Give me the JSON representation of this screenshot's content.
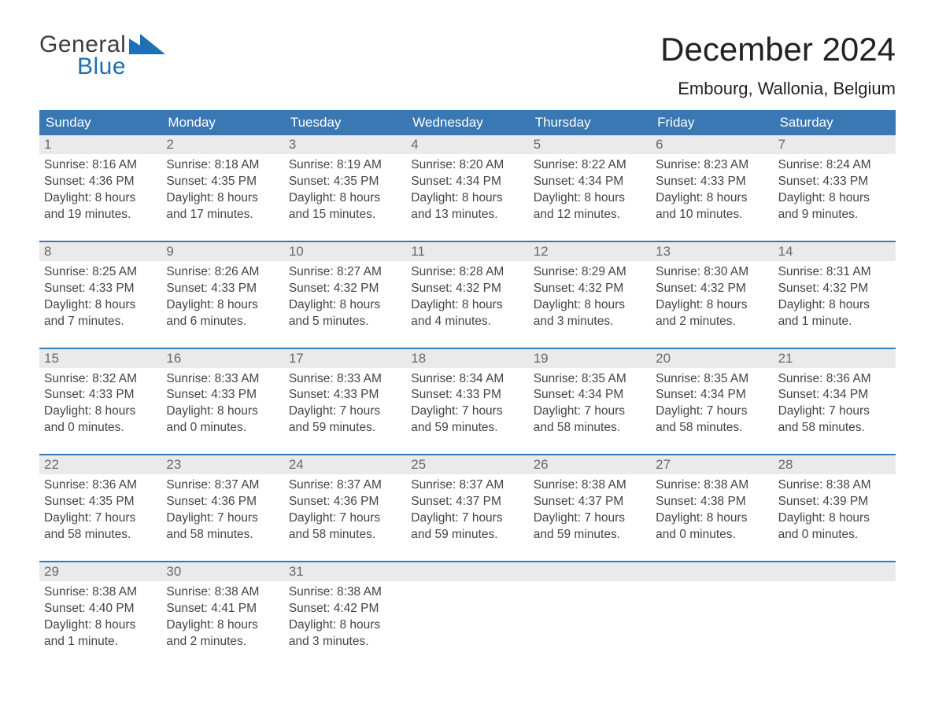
{
  "logo": {
    "word1": "General",
    "word2": "Blue",
    "triangle_color": "#1f6fb2",
    "text_color_word1": "#3d3d3d",
    "text_color_word2": "#1f6fb2"
  },
  "header": {
    "title": "December 2024",
    "location": "Embourg, Wallonia, Belgium"
  },
  "colors": {
    "header_bg": "#3a78b5",
    "header_text": "#ffffff",
    "daynum_bg": "#eaeaea",
    "daynum_text": "#6a6a6a",
    "divider": "#3a78b5",
    "body_text": "#444444",
    "background": "#ffffff"
  },
  "weekday_labels": [
    "Sunday",
    "Monday",
    "Tuesday",
    "Wednesday",
    "Thursday",
    "Friday",
    "Saturday"
  ],
  "weeks": [
    {
      "days": [
        {
          "num": "1",
          "sunrise": "Sunrise: 8:16 AM",
          "sunset": "Sunset: 4:36 PM",
          "daylight1": "Daylight: 8 hours",
          "daylight2": "and 19 minutes."
        },
        {
          "num": "2",
          "sunrise": "Sunrise: 8:18 AM",
          "sunset": "Sunset: 4:35 PM",
          "daylight1": "Daylight: 8 hours",
          "daylight2": "and 17 minutes."
        },
        {
          "num": "3",
          "sunrise": "Sunrise: 8:19 AM",
          "sunset": "Sunset: 4:35 PM",
          "daylight1": "Daylight: 8 hours",
          "daylight2": "and 15 minutes."
        },
        {
          "num": "4",
          "sunrise": "Sunrise: 8:20 AM",
          "sunset": "Sunset: 4:34 PM",
          "daylight1": "Daylight: 8 hours",
          "daylight2": "and 13 minutes."
        },
        {
          "num": "5",
          "sunrise": "Sunrise: 8:22 AM",
          "sunset": "Sunset: 4:34 PM",
          "daylight1": "Daylight: 8 hours",
          "daylight2": "and 12 minutes."
        },
        {
          "num": "6",
          "sunrise": "Sunrise: 8:23 AM",
          "sunset": "Sunset: 4:33 PM",
          "daylight1": "Daylight: 8 hours",
          "daylight2": "and 10 minutes."
        },
        {
          "num": "7",
          "sunrise": "Sunrise: 8:24 AM",
          "sunset": "Sunset: 4:33 PM",
          "daylight1": "Daylight: 8 hours",
          "daylight2": "and 9 minutes."
        }
      ]
    },
    {
      "days": [
        {
          "num": "8",
          "sunrise": "Sunrise: 8:25 AM",
          "sunset": "Sunset: 4:33 PM",
          "daylight1": "Daylight: 8 hours",
          "daylight2": "and 7 minutes."
        },
        {
          "num": "9",
          "sunrise": "Sunrise: 8:26 AM",
          "sunset": "Sunset: 4:33 PM",
          "daylight1": "Daylight: 8 hours",
          "daylight2": "and 6 minutes."
        },
        {
          "num": "10",
          "sunrise": "Sunrise: 8:27 AM",
          "sunset": "Sunset: 4:32 PM",
          "daylight1": "Daylight: 8 hours",
          "daylight2": "and 5 minutes."
        },
        {
          "num": "11",
          "sunrise": "Sunrise: 8:28 AM",
          "sunset": "Sunset: 4:32 PM",
          "daylight1": "Daylight: 8 hours",
          "daylight2": "and 4 minutes."
        },
        {
          "num": "12",
          "sunrise": "Sunrise: 8:29 AM",
          "sunset": "Sunset: 4:32 PM",
          "daylight1": "Daylight: 8 hours",
          "daylight2": "and 3 minutes."
        },
        {
          "num": "13",
          "sunrise": "Sunrise: 8:30 AM",
          "sunset": "Sunset: 4:32 PM",
          "daylight1": "Daylight: 8 hours",
          "daylight2": "and 2 minutes."
        },
        {
          "num": "14",
          "sunrise": "Sunrise: 8:31 AM",
          "sunset": "Sunset: 4:32 PM",
          "daylight1": "Daylight: 8 hours",
          "daylight2": "and 1 minute."
        }
      ]
    },
    {
      "days": [
        {
          "num": "15",
          "sunrise": "Sunrise: 8:32 AM",
          "sunset": "Sunset: 4:33 PM",
          "daylight1": "Daylight: 8 hours",
          "daylight2": "and 0 minutes."
        },
        {
          "num": "16",
          "sunrise": "Sunrise: 8:33 AM",
          "sunset": "Sunset: 4:33 PM",
          "daylight1": "Daylight: 8 hours",
          "daylight2": "and 0 minutes."
        },
        {
          "num": "17",
          "sunrise": "Sunrise: 8:33 AM",
          "sunset": "Sunset: 4:33 PM",
          "daylight1": "Daylight: 7 hours",
          "daylight2": "and 59 minutes."
        },
        {
          "num": "18",
          "sunrise": "Sunrise: 8:34 AM",
          "sunset": "Sunset: 4:33 PM",
          "daylight1": "Daylight: 7 hours",
          "daylight2": "and 59 minutes."
        },
        {
          "num": "19",
          "sunrise": "Sunrise: 8:35 AM",
          "sunset": "Sunset: 4:34 PM",
          "daylight1": "Daylight: 7 hours",
          "daylight2": "and 58 minutes."
        },
        {
          "num": "20",
          "sunrise": "Sunrise: 8:35 AM",
          "sunset": "Sunset: 4:34 PM",
          "daylight1": "Daylight: 7 hours",
          "daylight2": "and 58 minutes."
        },
        {
          "num": "21",
          "sunrise": "Sunrise: 8:36 AM",
          "sunset": "Sunset: 4:34 PM",
          "daylight1": "Daylight: 7 hours",
          "daylight2": "and 58 minutes."
        }
      ]
    },
    {
      "days": [
        {
          "num": "22",
          "sunrise": "Sunrise: 8:36 AM",
          "sunset": "Sunset: 4:35 PM",
          "daylight1": "Daylight: 7 hours",
          "daylight2": "and 58 minutes."
        },
        {
          "num": "23",
          "sunrise": "Sunrise: 8:37 AM",
          "sunset": "Sunset: 4:36 PM",
          "daylight1": "Daylight: 7 hours",
          "daylight2": "and 58 minutes."
        },
        {
          "num": "24",
          "sunrise": "Sunrise: 8:37 AM",
          "sunset": "Sunset: 4:36 PM",
          "daylight1": "Daylight: 7 hours",
          "daylight2": "and 58 minutes."
        },
        {
          "num": "25",
          "sunrise": "Sunrise: 8:37 AM",
          "sunset": "Sunset: 4:37 PM",
          "daylight1": "Daylight: 7 hours",
          "daylight2": "and 59 minutes."
        },
        {
          "num": "26",
          "sunrise": "Sunrise: 8:38 AM",
          "sunset": "Sunset: 4:37 PM",
          "daylight1": "Daylight: 7 hours",
          "daylight2": "and 59 minutes."
        },
        {
          "num": "27",
          "sunrise": "Sunrise: 8:38 AM",
          "sunset": "Sunset: 4:38 PM",
          "daylight1": "Daylight: 8 hours",
          "daylight2": "and 0 minutes."
        },
        {
          "num": "28",
          "sunrise": "Sunrise: 8:38 AM",
          "sunset": "Sunset: 4:39 PM",
          "daylight1": "Daylight: 8 hours",
          "daylight2": "and 0 minutes."
        }
      ]
    },
    {
      "days": [
        {
          "num": "29",
          "sunrise": "Sunrise: 8:38 AM",
          "sunset": "Sunset: 4:40 PM",
          "daylight1": "Daylight: 8 hours",
          "daylight2": "and 1 minute."
        },
        {
          "num": "30",
          "sunrise": "Sunrise: 8:38 AM",
          "sunset": "Sunset: 4:41 PM",
          "daylight1": "Daylight: 8 hours",
          "daylight2": "and 2 minutes."
        },
        {
          "num": "31",
          "sunrise": "Sunrise: 8:38 AM",
          "sunset": "Sunset: 4:42 PM",
          "daylight1": "Daylight: 8 hours",
          "daylight2": "and 3 minutes."
        },
        null,
        null,
        null,
        null
      ]
    }
  ]
}
